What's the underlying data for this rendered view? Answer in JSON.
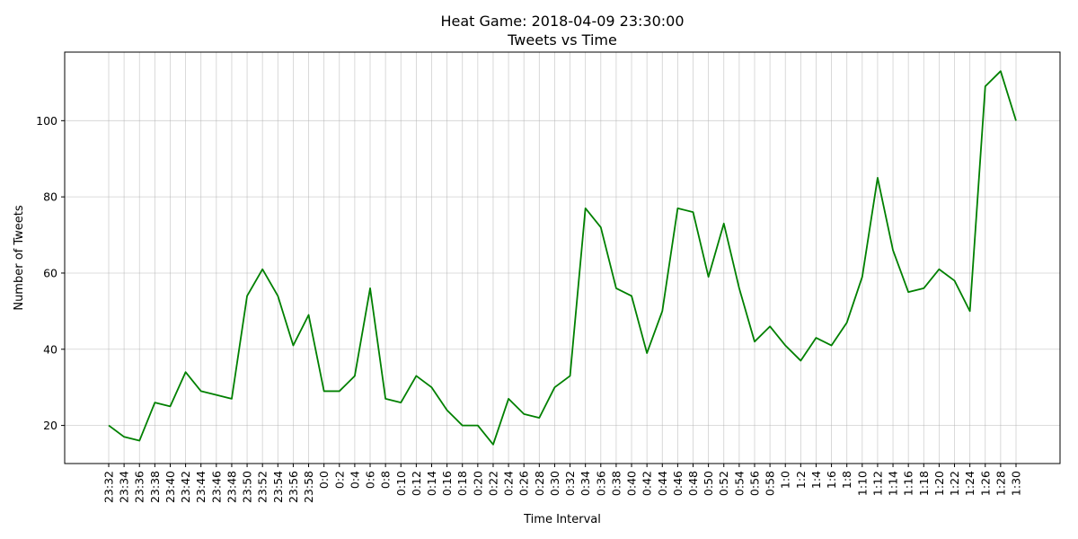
{
  "chart_data": {
    "type": "line",
    "title_line1": "Heat Game: 2018-04-09 23:30:00",
    "title_line2": "Tweets vs Time",
    "xlabel": "Time Interval",
    "ylabel": "Number of Tweets",
    "grid": true,
    "ylim": [
      10,
      118
    ],
    "yticks": [
      20,
      40,
      60,
      80,
      100
    ],
    "line_color": "#008000",
    "categories": [
      "23:32",
      "23:34",
      "23:36",
      "23:38",
      "23:40",
      "23:42",
      "23:44",
      "23:46",
      "23:48",
      "23:50",
      "23:52",
      "23:54",
      "23:56",
      "23:58",
      "0:0",
      "0:2",
      "0:4",
      "0:6",
      "0:8",
      "0:10",
      "0:12",
      "0:14",
      "0:16",
      "0:18",
      "0:20",
      "0:22",
      "0:24",
      "0:26",
      "0:28",
      "0:30",
      "0:32",
      "0:34",
      "0:36",
      "0:38",
      "0:40",
      "0:42",
      "0:44",
      "0:46",
      "0:48",
      "0:50",
      "0:52",
      "0:54",
      "0:56",
      "0:58",
      "1:0",
      "1:2",
      "1:4",
      "1:6",
      "1:8",
      "1:10",
      "1:12",
      "1:14",
      "1:16",
      "1:18",
      "1:20",
      "1:22",
      "1:24",
      "1:26",
      "1:28",
      "1:30"
    ],
    "values": [
      20,
      17,
      16,
      26,
      25,
      34,
      29,
      28,
      27,
      54,
      61,
      54,
      41,
      49,
      29,
      29,
      33,
      56,
      27,
      26,
      33,
      30,
      24,
      20,
      20,
      15,
      27,
      23,
      22,
      30,
      33,
      77,
      72,
      56,
      54,
      39,
      50,
      77,
      76,
      59,
      73,
      56,
      42,
      46,
      41,
      37,
      43,
      41,
      47,
      59,
      85,
      66,
      55,
      56,
      61,
      58,
      50,
      109,
      113,
      100
    ]
  }
}
